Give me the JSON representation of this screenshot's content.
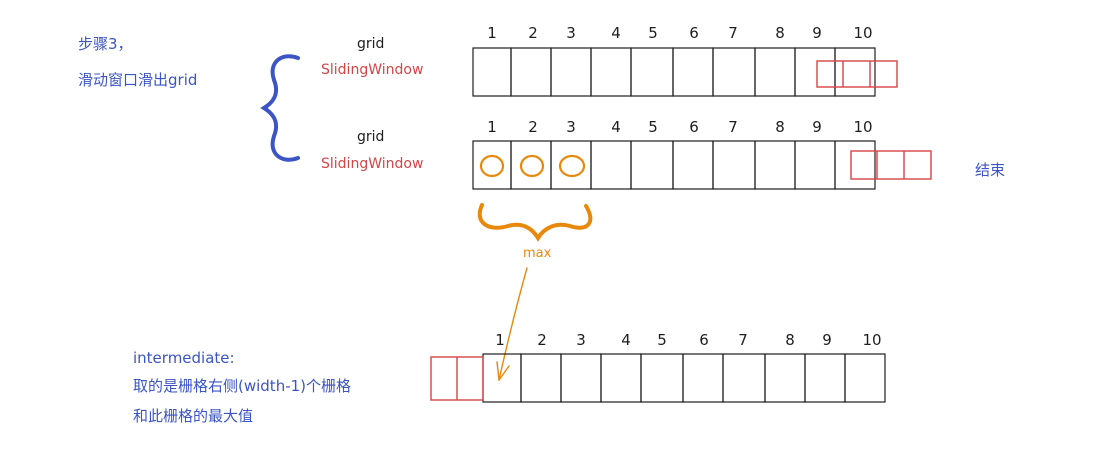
{
  "step_note": {
    "title": "步骤3，",
    "subtitle": "滑动窗口滑出grid"
  },
  "row1": {
    "grid_label": "grid",
    "window_label": "SlidingWindow",
    "numbers": [
      "1",
      "2",
      "3",
      "4",
      "5",
      "6",
      "7",
      "8",
      "9",
      "10"
    ]
  },
  "row2": {
    "grid_label": "grid",
    "window_label": "SlidingWindow",
    "numbers": [
      "1",
      "2",
      "3",
      "4",
      "5",
      "6",
      "7",
      "8",
      "9",
      "10"
    ],
    "end_label": "结束"
  },
  "max_label": "max",
  "row3": {
    "numbers": [
      "1",
      "2",
      "3",
      "4",
      "5",
      "6",
      "7",
      "8",
      "9",
      "10"
    ]
  },
  "intermediate_note": {
    "title": "intermediate:",
    "line1": "取的是栅格右侧(width-1)个栅格",
    "line2": "和此栅格的最大值"
  },
  "colors": {
    "blue": "#3b55c4",
    "red": "#d64545",
    "orange": "#e8890c",
    "black": "#1e1e1e"
  }
}
